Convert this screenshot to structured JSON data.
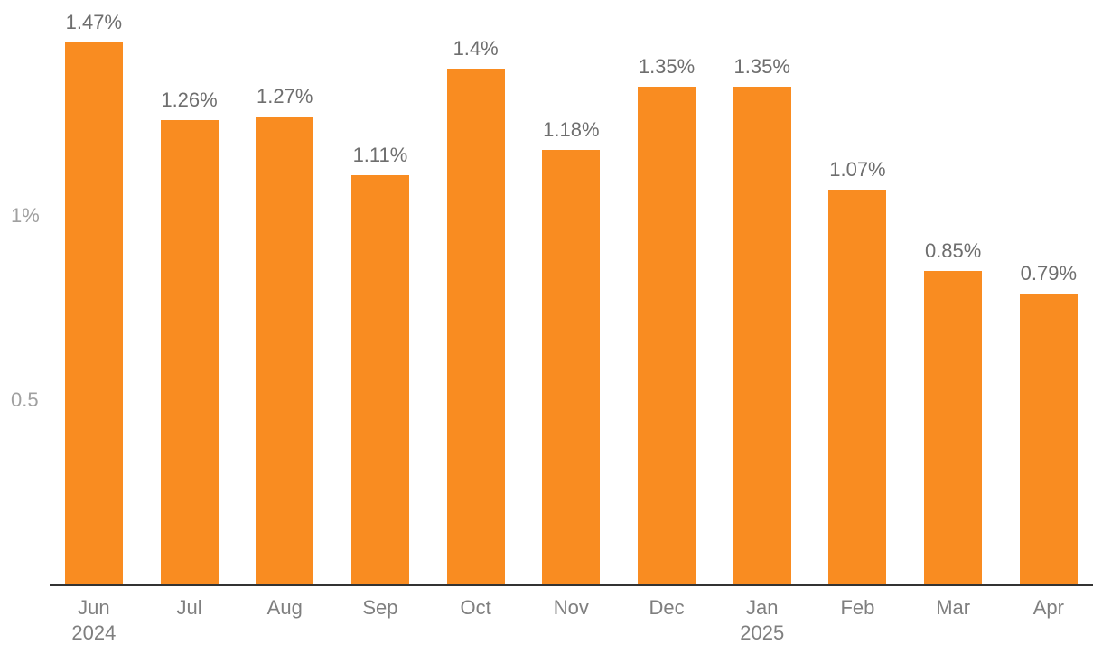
{
  "chart_data": {
    "type": "bar",
    "categories": [
      "Jun",
      "Jul",
      "Aug",
      "Sep",
      "Oct",
      "Nov",
      "Dec",
      "Jan",
      "Feb",
      "Mar",
      "Apr"
    ],
    "category_sublabels": [
      "2024",
      "",
      "",
      "",
      "",
      "",
      "",
      "2025",
      "",
      "",
      ""
    ],
    "values": [
      1.47,
      1.26,
      1.27,
      1.11,
      1.4,
      1.18,
      1.35,
      1.35,
      1.07,
      0.85,
      0.79
    ],
    "data_labels": [
      "1.47%",
      "1.26%",
      "1.27%",
      "1.11%",
      "1.4%",
      "1.18%",
      "1.35%",
      "1.35%",
      "1.07%",
      "0.85%",
      "0.79%"
    ],
    "title": "",
    "xlabel": "",
    "ylabel": "",
    "ylim": [
      0,
      1.59
    ],
    "y_ticks": [
      {
        "value": 1.0,
        "label": "1%"
      },
      {
        "value": 0.5,
        "label": "0.5"
      }
    ],
    "grid": false,
    "legend": false,
    "colors": {
      "bar": "#F98C21",
      "axis_line": "#333333",
      "data_label": "#6E6E6E",
      "x_tick": "#7F7F7F",
      "y_tick": "#A0A0A0",
      "background": "#FFFFFF"
    }
  }
}
